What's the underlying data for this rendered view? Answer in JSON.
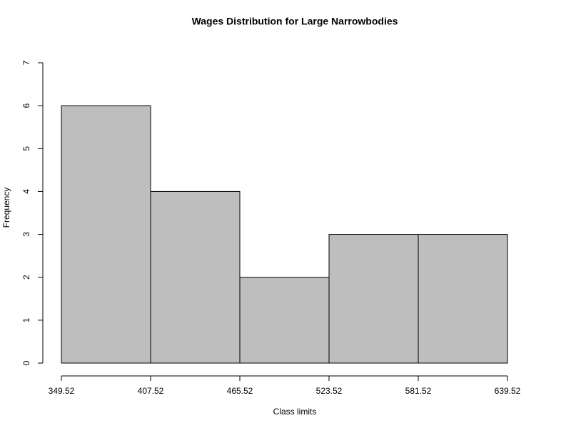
{
  "chart_data": {
    "type": "histogram",
    "title": "Wages Distribution for Large Narrowbodies",
    "xlabel": "Class limits",
    "ylabel": "Frequency",
    "bins": [
      349.52,
      407.52,
      465.52,
      523.52,
      581.52,
      639.52
    ],
    "counts": [
      6,
      4,
      2,
      3,
      3
    ],
    "color": "#bebebe",
    "xlim": [
      349.52,
      639.52
    ],
    "xticks": [
      349.52,
      407.52,
      465.52,
      523.52,
      581.52,
      639.52
    ],
    "ylim": [
      0,
      7
    ],
    "yticks": [
      0,
      1,
      2,
      3,
      4,
      5,
      6,
      7
    ]
  }
}
